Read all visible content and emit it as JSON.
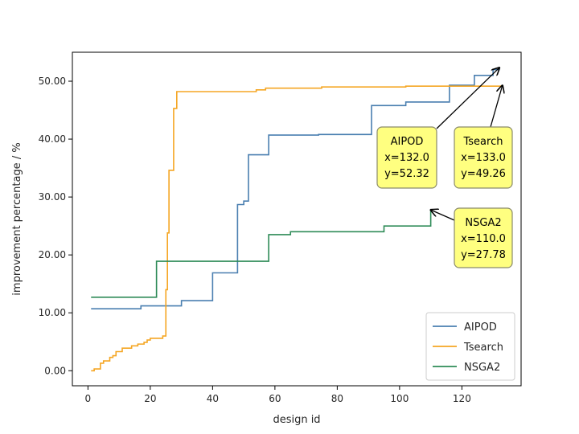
{
  "chart_data": {
    "type": "line",
    "step": true,
    "xlabel": "design id",
    "ylabel": "improvement percentage / %",
    "xlim": [
      -5,
      139
    ],
    "ylim": [
      -2.6,
      55
    ],
    "xticks": [
      0,
      20,
      40,
      60,
      80,
      100,
      120
    ],
    "yticks": [
      0,
      10,
      20,
      30,
      40,
      50
    ],
    "ytick_format": "fixed2",
    "grid": false,
    "legend_position": "lower-right",
    "series": [
      {
        "name": "AIPOD",
        "color": "#4a7fb0",
        "points": [
          [
            1,
            10.7
          ],
          [
            17,
            10.7
          ],
          [
            17,
            11.2
          ],
          [
            30,
            11.2
          ],
          [
            30,
            12.1
          ],
          [
            40,
            12.1
          ],
          [
            40,
            16.9
          ],
          [
            48,
            16.9
          ],
          [
            48,
            28.7
          ],
          [
            50,
            28.7
          ],
          [
            50,
            29.3
          ],
          [
            51.5,
            29.3
          ],
          [
            51.5,
            37.3
          ],
          [
            58,
            37.3
          ],
          [
            58,
            40.7
          ],
          [
            74,
            40.7
          ],
          [
            74,
            40.8
          ],
          [
            91,
            40.8
          ],
          [
            91,
            45.8
          ],
          [
            102,
            45.8
          ],
          [
            102,
            46.4
          ],
          [
            116,
            46.4
          ],
          [
            116,
            49.3
          ],
          [
            124,
            49.3
          ],
          [
            124,
            51.0
          ],
          [
            130,
            51.0
          ],
          [
            130,
            52.0
          ],
          [
            132,
            52.0
          ],
          [
            132,
            52.32
          ]
        ]
      },
      {
        "name": "Tsearch",
        "color": "#f5a623",
        "points": [
          [
            1,
            0.0
          ],
          [
            2,
            0.0
          ],
          [
            2,
            0.3
          ],
          [
            4,
            0.3
          ],
          [
            4,
            1.3
          ],
          [
            5,
            1.3
          ],
          [
            5,
            1.7
          ],
          [
            7,
            1.7
          ],
          [
            7,
            2.3
          ],
          [
            8,
            2.3
          ],
          [
            8,
            2.6
          ],
          [
            9,
            2.6
          ],
          [
            9,
            3.3
          ],
          [
            11,
            3.3
          ],
          [
            11,
            3.9
          ],
          [
            14,
            3.9
          ],
          [
            14,
            4.3
          ],
          [
            16,
            4.3
          ],
          [
            16,
            4.6
          ],
          [
            18,
            4.6
          ],
          [
            18,
            4.9
          ],
          [
            19,
            4.9
          ],
          [
            19,
            5.3
          ],
          [
            20,
            5.3
          ],
          [
            20,
            5.6
          ],
          [
            24,
            5.6
          ],
          [
            24,
            6.0
          ],
          [
            25,
            6.0
          ],
          [
            25,
            14.0
          ],
          [
            25.5,
            14.0
          ],
          [
            25.5,
            23.8
          ],
          [
            26,
            23.8
          ],
          [
            26,
            34.6
          ],
          [
            27.5,
            34.6
          ],
          [
            27.5,
            45.3
          ],
          [
            28.5,
            45.3
          ],
          [
            28.5,
            48.2
          ],
          [
            54,
            48.2
          ],
          [
            54,
            48.5
          ],
          [
            57,
            48.5
          ],
          [
            57,
            48.8
          ],
          [
            75,
            48.8
          ],
          [
            75,
            49.0
          ],
          [
            102,
            49.0
          ],
          [
            102,
            49.15
          ],
          [
            133,
            49.15
          ],
          [
            133,
            49.26
          ]
        ]
      },
      {
        "name": "NSGA2",
        "color": "#2e8b57",
        "points": [
          [
            1,
            12.7
          ],
          [
            22,
            12.7
          ],
          [
            22,
            18.9
          ],
          [
            58,
            18.9
          ],
          [
            58,
            23.5
          ],
          [
            65,
            23.5
          ],
          [
            65,
            24.0
          ],
          [
            95,
            24.0
          ],
          [
            95,
            25.0
          ],
          [
            110,
            25.0
          ],
          [
            110,
            27.78
          ]
        ]
      }
    ],
    "annotations": [
      {
        "label": "AIPOD",
        "x": 132.0,
        "y": 52.32,
        "lines": [
          "AIPOD",
          "x=132.0",
          "y=52.32"
        ]
      },
      {
        "label": "Tsearch",
        "x": 133.0,
        "y": 49.26,
        "lines": [
          "Tsearch",
          "x=133.0",
          "y=49.26"
        ]
      },
      {
        "label": "NSGA2",
        "x": 110.0,
        "y": 27.78,
        "lines": [
          "NSGA2",
          "x=110.0",
          "y=27.78"
        ]
      }
    ]
  }
}
